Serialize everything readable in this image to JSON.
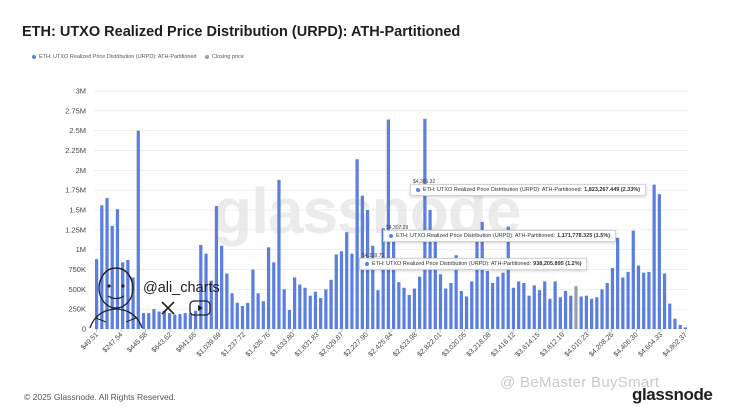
{
  "title": "ETH: UTXO Realized Price Distribution (URPD): ATH-Partitioned",
  "legend": [
    {
      "label": "ETH: UTXO Realized Price Distribution (URPD): ATH-Partitioned",
      "color": "#5b7fe0"
    },
    {
      "label": "Closing price",
      "color": "#9aa0a6"
    }
  ],
  "colors": {
    "bar": "#5b7fe0",
    "closing": "#9aa0a6",
    "grid": "#e6e6e6"
  },
  "footer": "© 2025 Glassnode. All Rights Reserved.",
  "logo": "glassnode",
  "watermarks": {
    "background": "glassnode",
    "corner": "@ BeMaster BuySmart"
  },
  "social": {
    "handle": "@ali_charts",
    "icons": [
      "avatar-icon",
      "x-icon",
      "youtube-icon"
    ]
  },
  "tooltips": [
    {
      "date": "$4,305.32",
      "label": "ETH: UTXO Realized Price Distribution (URPD): ATH-Partitioned:",
      "value": "1,823,267.449 (2.33%)"
    },
    {
      "date": "$4,307.29",
      "label": "ETH: UTXO Realized Price Distribution (URPD): ATH-Partitioned:",
      "value": "1,171,778.325 (1.5%)"
    },
    {
      "date": "$4,159.75",
      "label": "ETH: UTXO Realized Price Distribution (URPD): ATH-Partitioned:",
      "value": "938,205.895 (1.2%)"
    }
  ],
  "chart_data": {
    "type": "bar",
    "title": "ETH: UTXO Realized Price Distribution (URPD): ATH-Partitioned",
    "xlabel": "",
    "ylabel": "",
    "ylim": [
      0,
      3000000
    ],
    "y_ticks": [
      "0",
      "250K",
      "500K",
      "750K",
      "1M",
      "1.25M",
      "1.5M",
      "1.75M",
      "2M",
      "2.25M",
      "2.5M",
      "2.75M",
      "3M"
    ],
    "x_tick_labels": [
      "$49.51",
      "$247.54",
      "$445.58",
      "$643.62",
      "$841.65",
      "$1,039.69",
      "$1,237.72",
      "$1,435.76",
      "$1,633.80",
      "$1,831.83",
      "$2,029.87",
      "$2,227.90",
      "$2,425.94",
      "$2,623.98",
      "$2,822.01",
      "$3,020.05",
      "$3,218.08",
      "$3,416.12",
      "$3,614.15",
      "$3,812.19",
      "$4,010.23",
      "$4,208.26",
      "$4,406.30",
      "$4,604.33",
      "$4,802.37"
    ],
    "grid": true,
    "legend_position": "top-left",
    "closing_price_index": 92,
    "values": [
      880000,
      1560000,
      1650000,
      1300000,
      1510000,
      840000,
      870000,
      650000,
      2500000,
      200000,
      200000,
      250000,
      220000,
      230000,
      200000,
      180000,
      190000,
      200000,
      200000,
      230000,
      1060000,
      950000,
      610000,
      1550000,
      1050000,
      700000,
      450000,
      330000,
      290000,
      330000,
      750000,
      450000,
      350000,
      1030000,
      840000,
      1880000,
      500000,
      240000,
      650000,
      560000,
      520000,
      420000,
      470000,
      390000,
      500000,
      620000,
      940000,
      980000,
      1220000,
      950000,
      2140000,
      1680000,
      1500000,
      1050000,
      490000,
      1270000,
      2640000,
      1130000,
      590000,
      520000,
      430000,
      510000,
      660000,
      2650000,
      1500000,
      1200000,
      690000,
      510000,
      580000,
      930000,
      480000,
      410000,
      600000,
      1120000,
      1350000,
      730000,
      580000,
      660000,
      710000,
      1290000,
      520000,
      600000,
      580000,
      420000,
      550000,
      490000,
      600000,
      380000,
      600000,
      400000,
      480000,
      420000,
      540000,
      410000,
      420000,
      380000,
      400000,
      500000,
      580000,
      770000,
      1150000,
      650000,
      720000,
      1240000,
      800000,
      710000,
      720000,
      1820000,
      1700000,
      700000,
      320000,
      130000,
      50000,
      20000
    ]
  }
}
